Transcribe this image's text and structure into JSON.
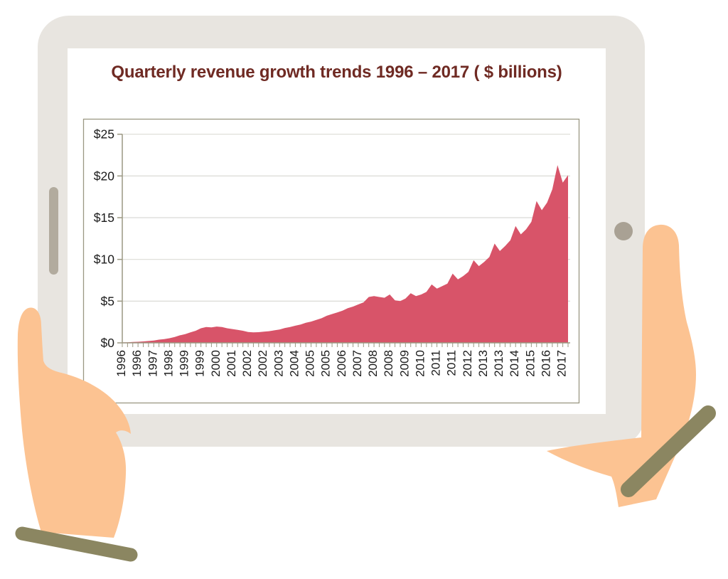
{
  "colors": {
    "area_fill": "#D85469",
    "title_text": "#6F2A23",
    "axis_frame": "#9B9883",
    "gridline": "#DBDBD6",
    "tick_text": "#1B1B1B",
    "tablet_body": "#E8E5E0",
    "screen": "#FFFFFF",
    "hand_skin": "#FCC392",
    "sleeve_cuff": "#8B8661",
    "bezel_bar": "#B2AB9E",
    "camera_button": "#A9A194"
  },
  "chart_data": {
    "type": "area",
    "title": "Quarterly revenue growth trends 1996 – 2017 ( $ billions)",
    "unit": "$ billions",
    "grid": true,
    "legend": false,
    "ylim": [
      0,
      25
    ],
    "y_tick_labels": [
      "$0",
      "$5",
      "$10",
      "$15",
      "$20",
      "$25"
    ],
    "x_tick_label_every": 3,
    "x_tick_labels": [
      "1996",
      "1996",
      "1997",
      "1998",
      "1999",
      "1999",
      "2000",
      "2001",
      "2002",
      "2002",
      "2003",
      "2004",
      "2005",
      "2005",
      "2006",
      "2007",
      "2008",
      "2008",
      "2009",
      "2010",
      "2011",
      "2011",
      "2012",
      "2013",
      "2013",
      "2014",
      "2015",
      "2016",
      "2017"
    ],
    "values": [
      0.05,
      0.07,
      0.1,
      0.13,
      0.17,
      0.22,
      0.28,
      0.38,
      0.45,
      0.55,
      0.7,
      0.9,
      1.05,
      1.25,
      1.45,
      1.75,
      1.9,
      1.85,
      1.95,
      1.9,
      1.75,
      1.65,
      1.55,
      1.45,
      1.3,
      1.25,
      1.28,
      1.35,
      1.4,
      1.5,
      1.6,
      1.78,
      1.9,
      2.05,
      2.2,
      2.4,
      2.55,
      2.75,
      2.95,
      3.25,
      3.45,
      3.65,
      3.85,
      4.15,
      4.35,
      4.6,
      4.85,
      5.5,
      5.6,
      5.5,
      5.4,
      5.8,
      5.1,
      5.0,
      5.3,
      5.95,
      5.6,
      5.8,
      6.1,
      7.0,
      6.5,
      6.8,
      7.1,
      8.3,
      7.6,
      8.0,
      8.5,
      9.9,
      9.2,
      9.7,
      10.3,
      11.9,
      11.0,
      11.6,
      12.3,
      14.0,
      13.0,
      13.6,
      14.5,
      17.0,
      15.9,
      16.8,
      18.4,
      21.3,
      19.2,
      20.1
    ]
  }
}
